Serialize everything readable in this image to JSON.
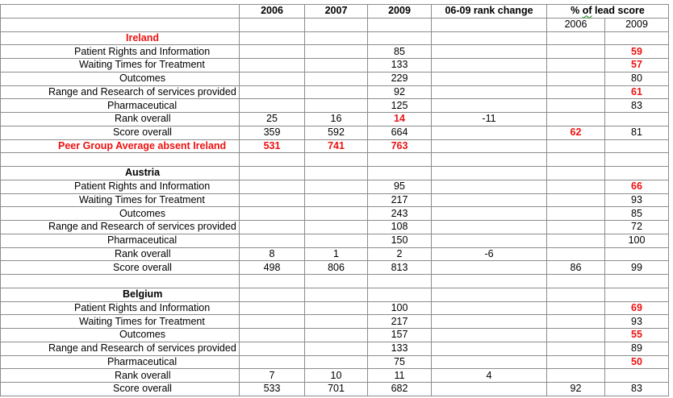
{
  "header": {
    "col_2006": "2006",
    "col_2007": "2007",
    "col_2009": "2009",
    "col_rank_change": "06-09 rank change",
    "lead_pre": "% ",
    "lead_of": "of",
    "lead_post": " lead score",
    "lead_2006": "2006",
    "lead_2009": "2009"
  },
  "rows": [
    {
      "label": "Ireland",
      "style": "red",
      "c": [
        "",
        "",
        "",
        "",
        "",
        ""
      ]
    },
    {
      "label": "Patient Rights and Information",
      "c": [
        "",
        "",
        "85",
        "",
        "",
        "59"
      ],
      "s": [
        "",
        "",
        "",
        "",
        "",
        "red"
      ]
    },
    {
      "label": "Waiting Times for Treatment",
      "c": [
        "",
        "",
        "133",
        "",
        "",
        "57"
      ],
      "s": [
        "",
        "",
        "",
        "",
        "",
        "red"
      ]
    },
    {
      "label": "Outcomes",
      "c": [
        "",
        "",
        "229",
        "",
        "",
        "80"
      ]
    },
    {
      "label": "Range and Research of services provided",
      "c": [
        "",
        "",
        "92",
        "",
        "",
        "61"
      ],
      "s": [
        "",
        "",
        "",
        "",
        "",
        "red"
      ]
    },
    {
      "label": "Pharmaceutical",
      "c": [
        "",
        "",
        "125",
        "",
        "",
        "83"
      ]
    },
    {
      "label": "Rank overall",
      "c": [
        "25",
        "16",
        "14",
        "-11",
        "",
        ""
      ],
      "s": [
        "",
        "",
        "red",
        "",
        "",
        ""
      ]
    },
    {
      "label": "Score overall",
      "c": [
        "359",
        "592",
        "664",
        "",
        "62",
        "81"
      ],
      "s": [
        "",
        "",
        "",
        "",
        "red",
        ""
      ]
    },
    {
      "label": "Peer Group Average absent Ireland",
      "style": "red",
      "c": [
        "531",
        "741",
        "763",
        "",
        "",
        ""
      ],
      "s": [
        "red",
        "red",
        "red",
        "",
        "",
        ""
      ]
    },
    {
      "label": "",
      "c": [
        "",
        "",
        "",
        "",
        "",
        ""
      ]
    },
    {
      "label": "Austria",
      "style": "b",
      "c": [
        "",
        "",
        "",
        "",
        "",
        ""
      ]
    },
    {
      "label": "Patient Rights and Information",
      "c": [
        "",
        "",
        "95",
        "",
        "",
        "66"
      ],
      "s": [
        "",
        "",
        "",
        "",
        "",
        "red"
      ]
    },
    {
      "label": "Waiting Times for Treatment",
      "c": [
        "",
        "",
        "217",
        "",
        "",
        "93"
      ]
    },
    {
      "label": "Outcomes",
      "c": [
        "",
        "",
        "243",
        "",
        "",
        "85"
      ]
    },
    {
      "label": "Range and Research of services provided",
      "c": [
        "",
        "",
        "108",
        "",
        "",
        "72"
      ]
    },
    {
      "label": "Pharmaceutical",
      "c": [
        "",
        "",
        "150",
        "",
        "",
        "100"
      ]
    },
    {
      "label": "Rank overall",
      "c": [
        "8",
        "1",
        "2",
        "-6",
        "",
        ""
      ]
    },
    {
      "label": "Score overall",
      "c": [
        "498",
        "806",
        "813",
        "",
        "86",
        "99"
      ]
    },
    {
      "label": "",
      "c": [
        "",
        "",
        "",
        "",
        "",
        ""
      ]
    },
    {
      "label": "Belgium",
      "style": "b",
      "c": [
        "",
        "",
        "",
        "",
        "",
        ""
      ]
    },
    {
      "label": "Patient Rights and Information",
      "c": [
        "",
        "",
        "100",
        "",
        "",
        "69"
      ],
      "s": [
        "",
        "",
        "",
        "",
        "",
        "red"
      ]
    },
    {
      "label": "Waiting Times for Treatment",
      "c": [
        "",
        "",
        "217",
        "",
        "",
        "93"
      ]
    },
    {
      "label": "Outcomes",
      "c": [
        "",
        "",
        "157",
        "",
        "",
        "55"
      ],
      "s": [
        "",
        "",
        "",
        "",
        "",
        "red"
      ]
    },
    {
      "label": "Range and Research of services provided",
      "c": [
        "",
        "",
        "133",
        "",
        "",
        "89"
      ]
    },
    {
      "label": "Pharmaceutical",
      "c": [
        "",
        "",
        "75",
        "",
        "",
        "50"
      ],
      "s": [
        "",
        "",
        "",
        "",
        "",
        "red"
      ]
    },
    {
      "label": "Rank overall",
      "c": [
        "7",
        "10",
        "11",
        "4",
        "",
        ""
      ]
    },
    {
      "label": "Score overall",
      "c": [
        "533",
        "701",
        "682",
        "",
        "92",
        "83"
      ]
    }
  ]
}
